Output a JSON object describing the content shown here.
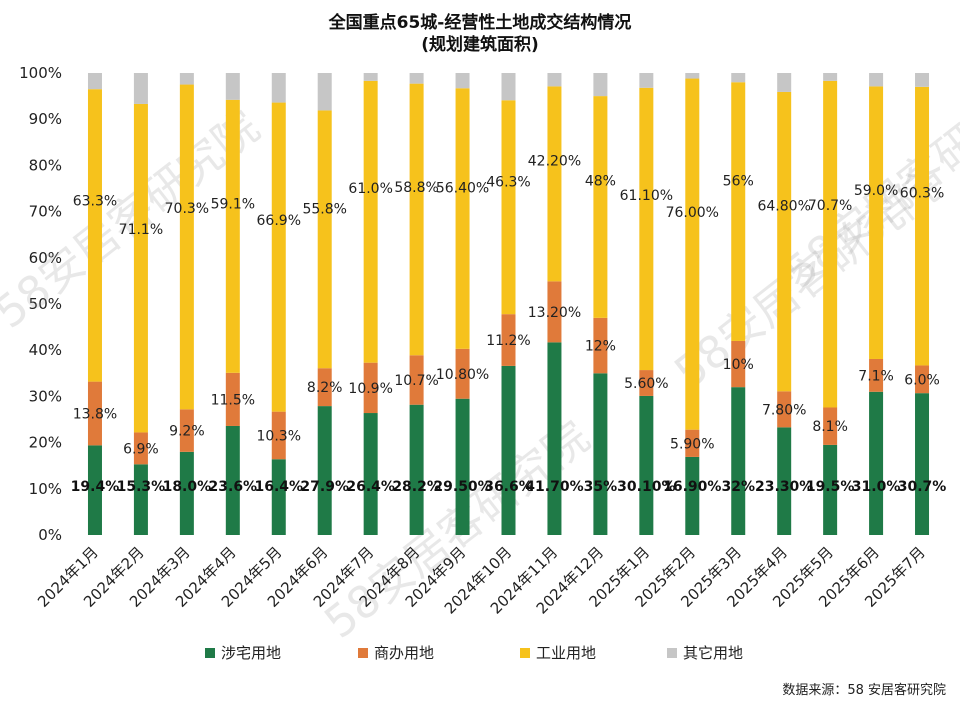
{
  "chart_data": {
    "type": "bar",
    "stacked": true,
    "title": "全国重点65城-经营性土地成交结构情况",
    "subtitle": "(规划建筑面积)",
    "ylim": [
      0,
      100
    ],
    "yticks": [
      "0%",
      "10%",
      "20%",
      "30%",
      "40%",
      "50%",
      "60%",
      "70%",
      "80%",
      "90%",
      "100%"
    ],
    "grid": false,
    "legend_position": "bottom",
    "categories": [
      "2024年1月",
      "2024年2月",
      "2024年3月",
      "2024年4月",
      "2024年5月",
      "2024年6月",
      "2024年7月",
      "2024年8月",
      "2024年9月",
      "2024年10月",
      "2024年11月",
      "2024年12月",
      "2025年1月",
      "2025年2月",
      "2025年3月",
      "2025年4月",
      "2025年5月",
      "2025年6月",
      "2025年7月"
    ],
    "series": [
      {
        "name": "涉宅用地",
        "color": "#1f7a47",
        "values": [
          19.4,
          15.3,
          18.0,
          23.6,
          16.4,
          27.9,
          26.4,
          28.2,
          29.5,
          36.6,
          41.7,
          35,
          30.1,
          16.9,
          32,
          23.3,
          19.5,
          31.0,
          30.7
        ],
        "labels": [
          "19.4%",
          "15.3%",
          "18.0%",
          "23.6%",
          "16.4%",
          "27.9%",
          "26.4%",
          "28.2%",
          "29.50%",
          "36.6%",
          "41.70%",
          "35%",
          "30.10%",
          "16.90%",
          "32%",
          "23.30%",
          "19.5%",
          "31.0%",
          "30.7%"
        ]
      },
      {
        "name": "商办用地",
        "color": "#e07a3a",
        "values": [
          13.8,
          6.9,
          9.2,
          11.5,
          10.3,
          8.2,
          10.9,
          10.7,
          10.8,
          11.2,
          13.2,
          12,
          5.6,
          5.9,
          10,
          7.8,
          8.1,
          7.1,
          6.0
        ],
        "labels": [
          "13.8%",
          "6.9%",
          "9.2%",
          "11.5%",
          "10.3%",
          "8.2%",
          "10.9%",
          "10.7%",
          "10.80%",
          "11.2%",
          "13.20%",
          "12%",
          "5.60%",
          "5.90%",
          "10%",
          "7.80%",
          "8.1%",
          "7.1%",
          "6.0%"
        ]
      },
      {
        "name": "工业用地",
        "color": "#f6c21c",
        "values": [
          63.3,
          71.1,
          70.3,
          59.1,
          66.9,
          55.8,
          61.0,
          58.8,
          56.4,
          46.3,
          42.2,
          48,
          61.1,
          76.0,
          56,
          64.8,
          70.7,
          59.0,
          60.3
        ],
        "labels": [
          "63.3%",
          "71.1%",
          "70.3%",
          "59.1%",
          "66.9%",
          "55.8%",
          "61.0%",
          "58.8%",
          "56.40%",
          "46.3%",
          "42.20%",
          "48%",
          "61.10%",
          "76.00%",
          "56%",
          "64.80%",
          "70.7%",
          "59.0%",
          "60.3%"
        ]
      },
      {
        "name": "其它用地",
        "color": "#c6c6c6",
        "values": [
          3.5,
          6.7,
          2.5,
          5.8,
          6.4,
          8.1,
          1.7,
          2.3,
          3.3,
          5.9,
          2.9,
          5,
          3.2,
          1.2,
          2,
          4.1,
          1.7,
          2.9,
          3.0
        ]
      }
    ]
  },
  "source": "数据来源：58 安居客研究院",
  "watermark": "58安居客研究院"
}
